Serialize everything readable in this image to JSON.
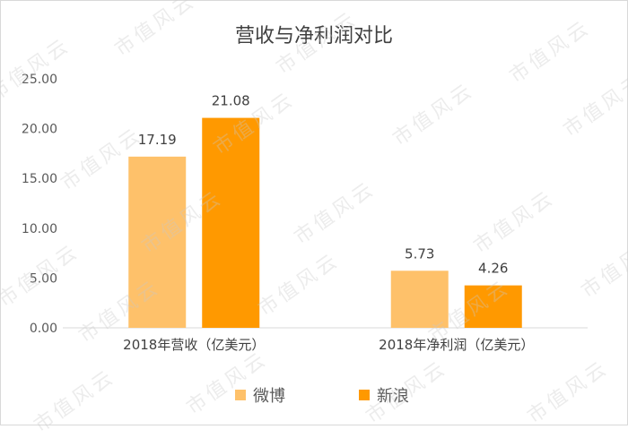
{
  "chart_data": {
    "type": "bar",
    "title": "营收与净利润对比",
    "categories": [
      "2018年营收（亿美元）",
      "2018年净利润（亿美元）"
    ],
    "series": [
      {
        "name": "微博",
        "color": "#fec16a",
        "values": [
          17.19,
          5.73
        ],
        "labels": [
          "17.19",
          "5.73"
        ]
      },
      {
        "name": "新浪",
        "color": "#ff9900",
        "values": [
          21.08,
          4.26
        ],
        "labels": [
          "21.08",
          "4.26"
        ]
      }
    ],
    "ylim": [
      0,
      25
    ],
    "yticks": [
      "0.00",
      "5.00",
      "10.00",
      "15.00",
      "20.00",
      "25.00"
    ],
    "grid": false,
    "legend_position": "bottom"
  },
  "watermark": "市值风云"
}
